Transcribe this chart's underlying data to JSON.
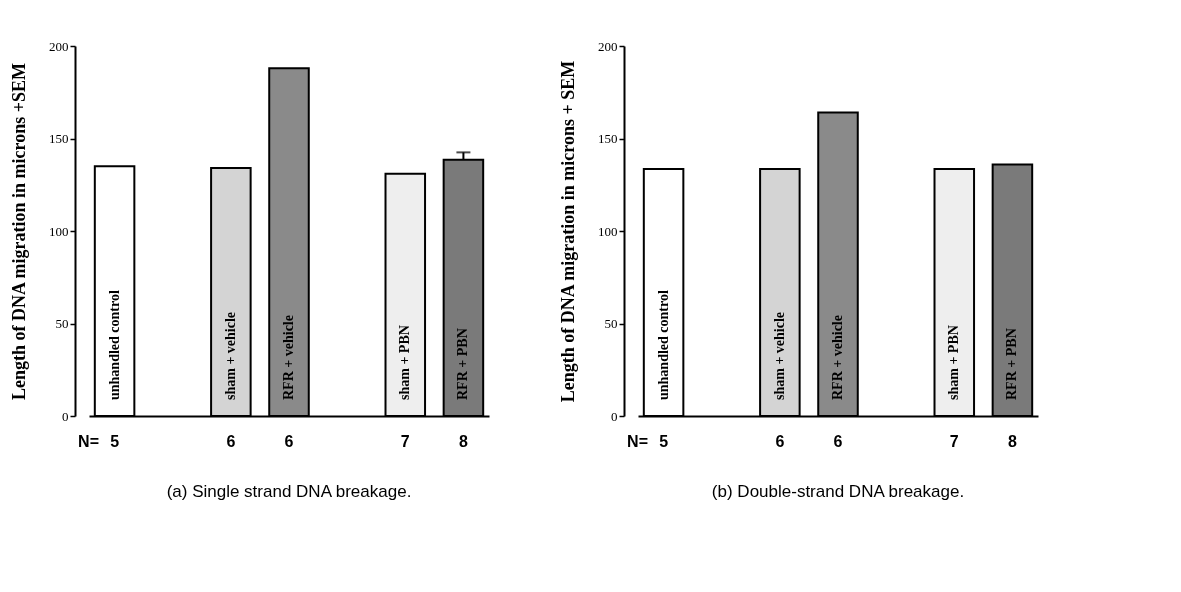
{
  "chart_data": [
    {
      "type": "bar",
      "title": "(a)  Single strand DNA breakage.",
      "ylabel": "Length of DNA migration in microns +SEM",
      "categories": [
        "unhandled control",
        null,
        "sham + vehicle",
        "RFR + vehicle",
        null,
        "sham + PBN",
        "RFR + PBN"
      ],
      "values": [
        135,
        null,
        134,
        188,
        null,
        131,
        138.5
      ],
      "errors": [
        null,
        null,
        null,
        null,
        null,
        null,
        [
          138.5,
          142.5
        ]
      ],
      "colors": [
        "#ffffff",
        "#ffffff",
        "#d4d4d4",
        "#8a8a8a",
        "#ffffff",
        "#eeeeee",
        "#7a7a7a"
      ],
      "ylim": [
        0,
        200
      ],
      "yticks": [
        0,
        50,
        100,
        150,
        200
      ],
      "annotations": [
        "N=",
        "5",
        "6",
        "6",
        "7",
        "8"
      ]
    },
    {
      "type": "bar",
      "title": "(b)  Double-strand DNA breakage.",
      "ylabel": "Length of DNA migration in microns + SEM",
      "categories": [
        "unhandled control",
        null,
        "sham + vehicle",
        "RFR + vehicle",
        null,
        "sham + PBN",
        "RFR + PBN"
      ],
      "values": [
        133.5,
        null,
        133.5,
        164,
        null,
        133.5,
        136
      ],
      "colors": [
        "#ffffff",
        "#ffffff",
        "#d4d4d4",
        "#8a8a8a",
        "#ffffff",
        "#eeeeee",
        "#7a7a7a"
      ],
      "ylim": [
        0,
        200
      ],
      "yticks": [
        0,
        50,
        100,
        150,
        200
      ],
      "annotations": [
        "N=",
        "5",
        "6",
        "6",
        "7",
        "8"
      ]
    }
  ]
}
